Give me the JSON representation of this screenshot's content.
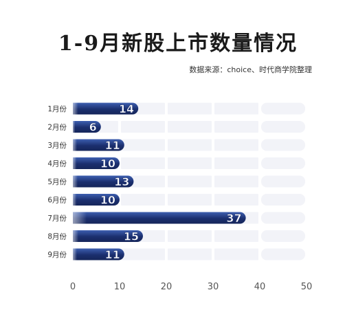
{
  "chart_data": {
    "type": "bar",
    "orientation": "horizontal",
    "title": "1-9月新股上市数量情况",
    "subtitle": "数据来源：choice、时代商学院整理",
    "categories": [
      "1月份",
      "2月份",
      "3月份",
      "4月份",
      "5月份",
      "6月份",
      "7月份",
      "8月份",
      "9月份"
    ],
    "values": [
      14,
      6,
      11,
      10,
      13,
      10,
      37,
      15,
      11
    ],
    "xlim": [
      0,
      50
    ],
    "xticks": [
      0,
      10,
      20,
      30,
      40,
      50
    ],
    "xlabel": "",
    "ylabel": "",
    "grid": false,
    "colors": {
      "bar_dark": "#1b2f6e",
      "bar_light": "#3d5fb0",
      "track": "#f2f3f8",
      "label": "#ffffff",
      "axis_text": "#555555"
    }
  }
}
